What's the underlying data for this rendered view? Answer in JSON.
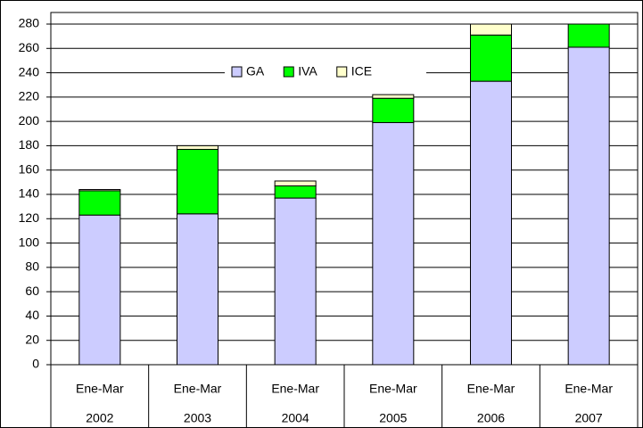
{
  "chart_data": {
    "type": "stacked-bar",
    "categories": [
      [
        "Ene-Mar",
        "2002"
      ],
      [
        "Ene-Mar",
        "2003"
      ],
      [
        "Ene-Mar",
        "2004"
      ],
      [
        "Ene-Mar",
        "2005"
      ],
      [
        "Ene-Mar",
        "2006"
      ],
      [
        "Ene-Mar",
        "2007"
      ]
    ],
    "series": [
      {
        "name": "GA",
        "color": "#ccccff",
        "values": [
          123,
          124,
          137,
          199,
          233,
          261
        ]
      },
      {
        "name": "IVA",
        "color": "#00ff00",
        "values": [
          20,
          53,
          10,
          20,
          38,
          19
        ]
      },
      {
        "name": "ICE",
        "color": "#ffffcc",
        "values": [
          1,
          3,
          4,
          3,
          9,
          0
        ]
      }
    ],
    "ylim": [
      0,
      280
    ],
    "yticks": [
      0,
      20,
      40,
      60,
      80,
      100,
      120,
      140,
      160,
      180,
      200,
      220,
      240,
      260,
      280
    ],
    "grid": true,
    "legend": "top"
  }
}
